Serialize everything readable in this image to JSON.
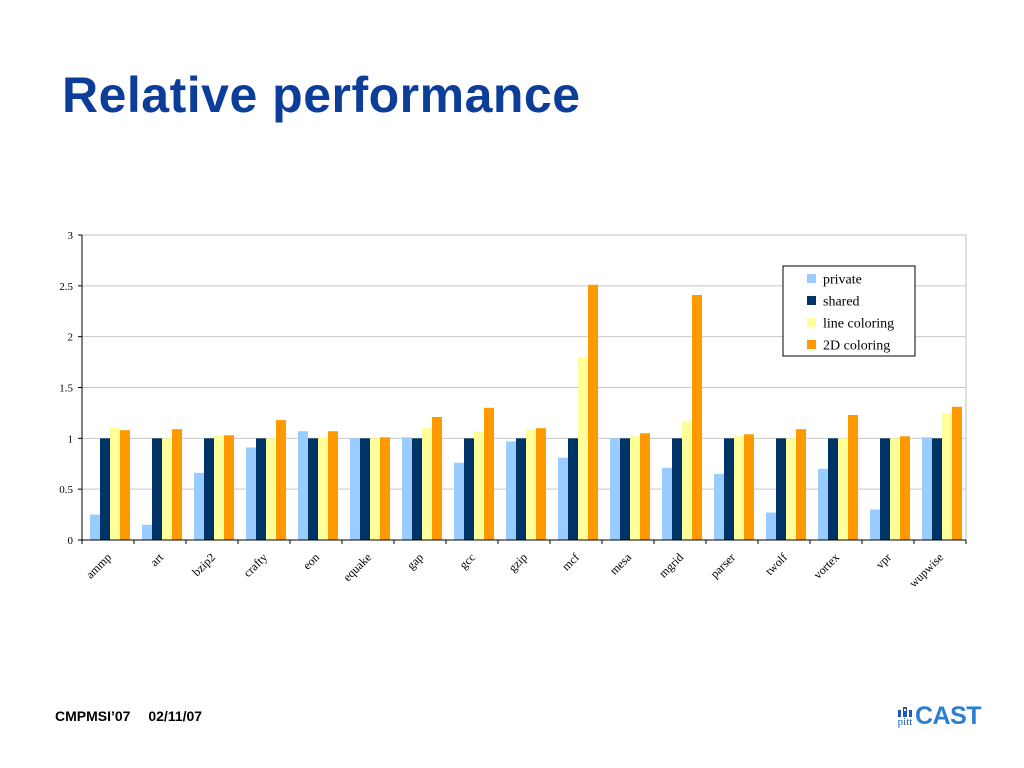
{
  "slide": {
    "title": "Relative performance",
    "footer_conference": "CMPMSI’07",
    "footer_date": "02/11/07",
    "logo_small": "pitt",
    "logo_large": "CAST"
  },
  "colors": {
    "title": "#0b3d99",
    "private": "#99ccff",
    "shared": "#003366",
    "line_coloring": "#ffff99",
    "2d_coloring": "#ff9900"
  },
  "chart_data": {
    "type": "bar",
    "title": "",
    "xlabel": "",
    "ylabel": "",
    "ylim": [
      0,
      3
    ],
    "yticks": [
      "0",
      "0.5",
      "1",
      "1.5",
      "2",
      "2.5",
      "3"
    ],
    "grid": true,
    "legend_position": "top-right",
    "categories": [
      "ammp",
      "art",
      "bzip2",
      "crafty",
      "eon",
      "equake",
      "gap",
      "gcc",
      "gzip",
      "mcf",
      "mesa",
      "mgrid",
      "parser",
      "twolf",
      "vortex",
      "vpr",
      "wupwise"
    ],
    "series": [
      {
        "name": "private",
        "color": "#99ccff",
        "values": [
          0.25,
          0.15,
          0.66,
          0.91,
          1.07,
          1.0,
          1.01,
          0.76,
          0.97,
          0.81,
          1.0,
          0.71,
          0.65,
          0.27,
          0.7,
          0.3,
          1.01
        ]
      },
      {
        "name": "shared",
        "color": "#003366",
        "values": [
          1,
          1,
          1,
          1,
          1,
          1,
          1,
          1,
          1,
          1,
          1,
          1,
          1,
          1,
          1,
          1,
          1
        ]
      },
      {
        "name": "line coloring",
        "color": "#ffff99",
        "values": [
          1.11,
          1.0,
          1.03,
          1.0,
          1.01,
          1.0,
          1.1,
          1.07,
          1.09,
          1.8,
          1.02,
          1.17,
          1.02,
          1.0,
          1.0,
          1.0,
          1.25
        ]
      },
      {
        "name": "2D coloring",
        "color": "#ff9900",
        "values": [
          1.08,
          1.09,
          1.03,
          1.18,
          1.07,
          1.01,
          1.21,
          1.3,
          1.1,
          2.51,
          1.05,
          2.41,
          1.04,
          1.09,
          1.23,
          1.02,
          1.31
        ]
      }
    ]
  }
}
